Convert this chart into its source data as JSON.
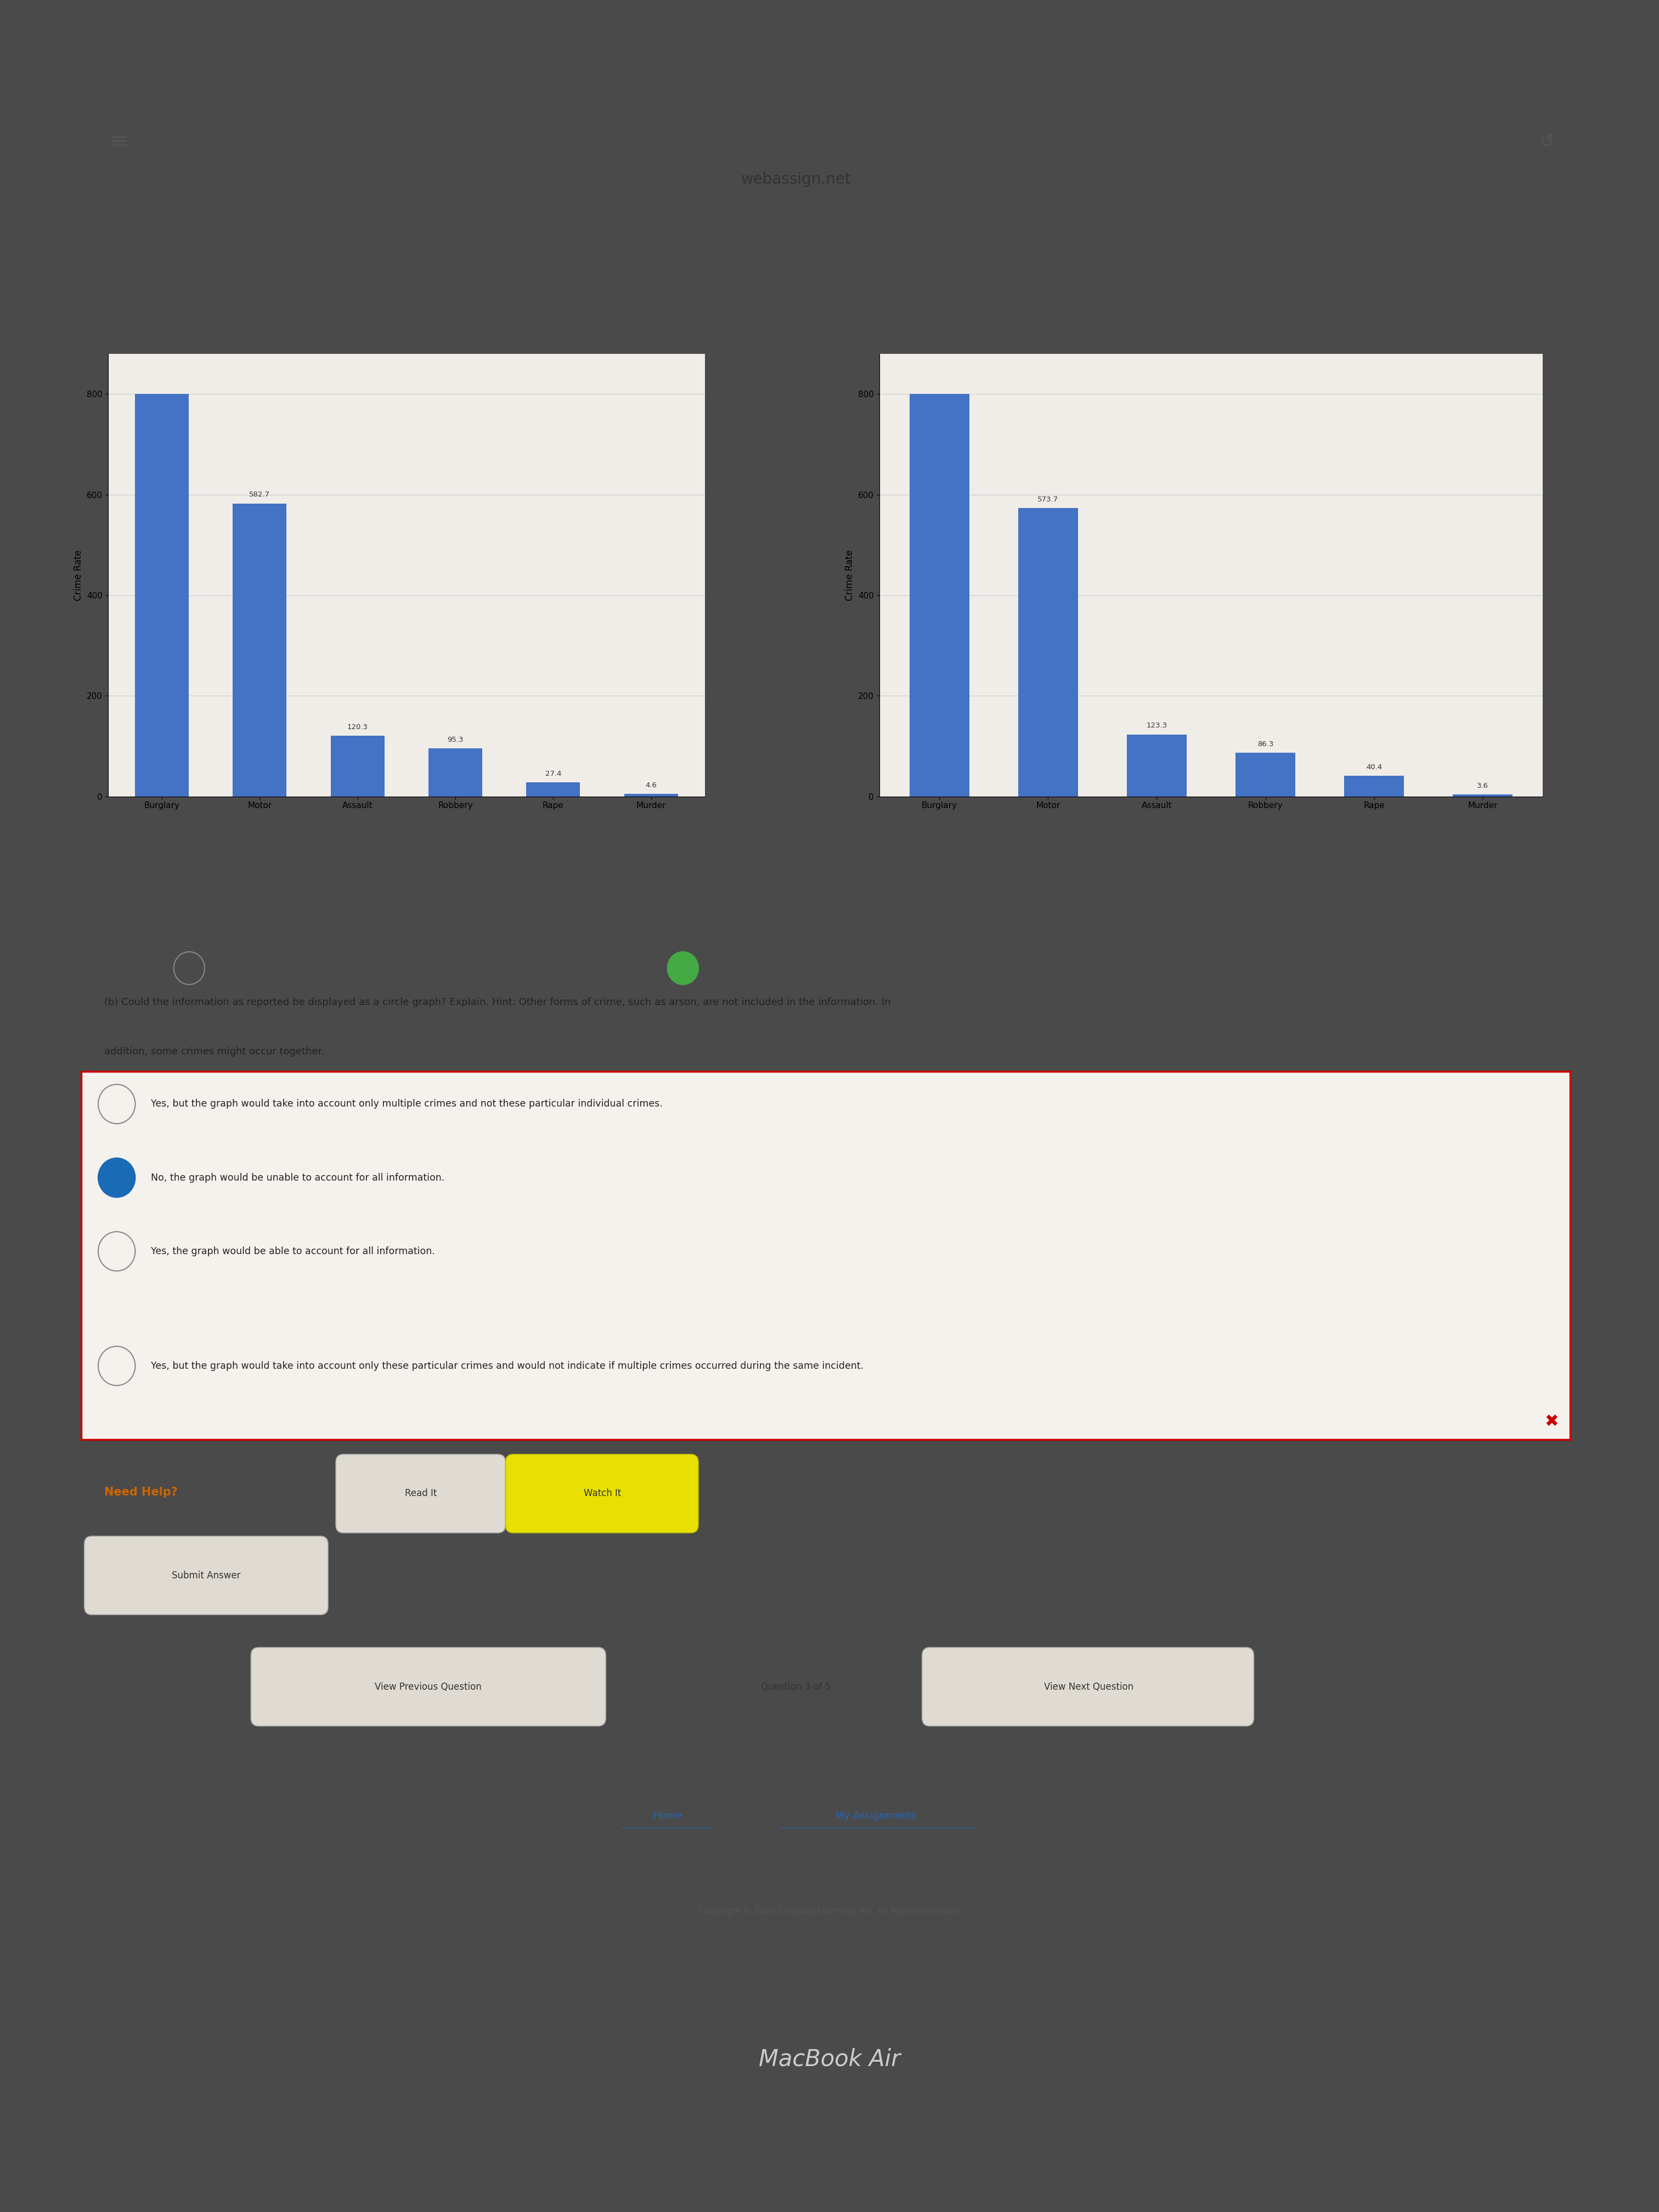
{
  "graph1": {
    "ylabel": "Crime Rate",
    "categories": [
      "Burglary",
      "Motor",
      "Assault",
      "Robbery",
      "Rape",
      "Murder"
    ],
    "values": [
      800,
      582.7,
      120.3,
      95.3,
      27.4,
      4.6
    ],
    "yticks": [
      0,
      200,
      400,
      600,
      800
    ],
    "ylim": [
      0,
      880
    ],
    "value_labels": [
      "",
      "582.7",
      "120.3",
      "95.3",
      "27.4",
      "4.6"
    ]
  },
  "graph2": {
    "ylabel": "Crime Rate",
    "categories": [
      "Burglary",
      "Motor",
      "Assault",
      "Robbery",
      "Rape",
      "Murder"
    ],
    "values": [
      800,
      573.7,
      123.3,
      86.3,
      40.4,
      3.6
    ],
    "yticks": [
      0,
      200,
      400,
      600,
      800
    ],
    "ylim": [
      0,
      880
    ],
    "value_labels": [
      "",
      "573.7",
      "123.3",
      "86.3",
      "40.4",
      "3.6"
    ]
  },
  "bar_color": "#4472C4",
  "laptop_bg": "#4a4a4a",
  "browser_bg": "#d4d1cb",
  "content_bg": "#f0ede8",
  "url": "webassign.net",
  "question_line1": "(b) Could the information as reported be displayed as a circle graph? Explain. Hint: Other forms of crime, such as arson, are not included in the information. In",
  "question_line2": "addition, some crimes might occur together.",
  "options": [
    "Yes, but the graph would take into account only multiple crimes and not these particular individual crimes.",
    "No, the graph would be unable to account for all information.",
    "Yes, the graph would be able to account for all information.",
    "Yes, but the graph would take into account only these particular crimes and would not indicate if multiple crimes occurred during the same incident."
  ],
  "selected_option": 1,
  "need_help_label": "Need Help?",
  "read_it_label": "Read It",
  "watch_it_label": "Watch It",
  "submit_label": "Submit Answer",
  "nav_prev": "View Previous Question",
  "nav_current": "Question 3 of 5",
  "nav_next": "View Next Question",
  "home_label": "Home",
  "assignments_label": "My Assignments",
  "copyright": "Copyright © 2020 Cengage Learning, Inc. All Rights Reserved",
  "macbook_label": "MacBook Air"
}
